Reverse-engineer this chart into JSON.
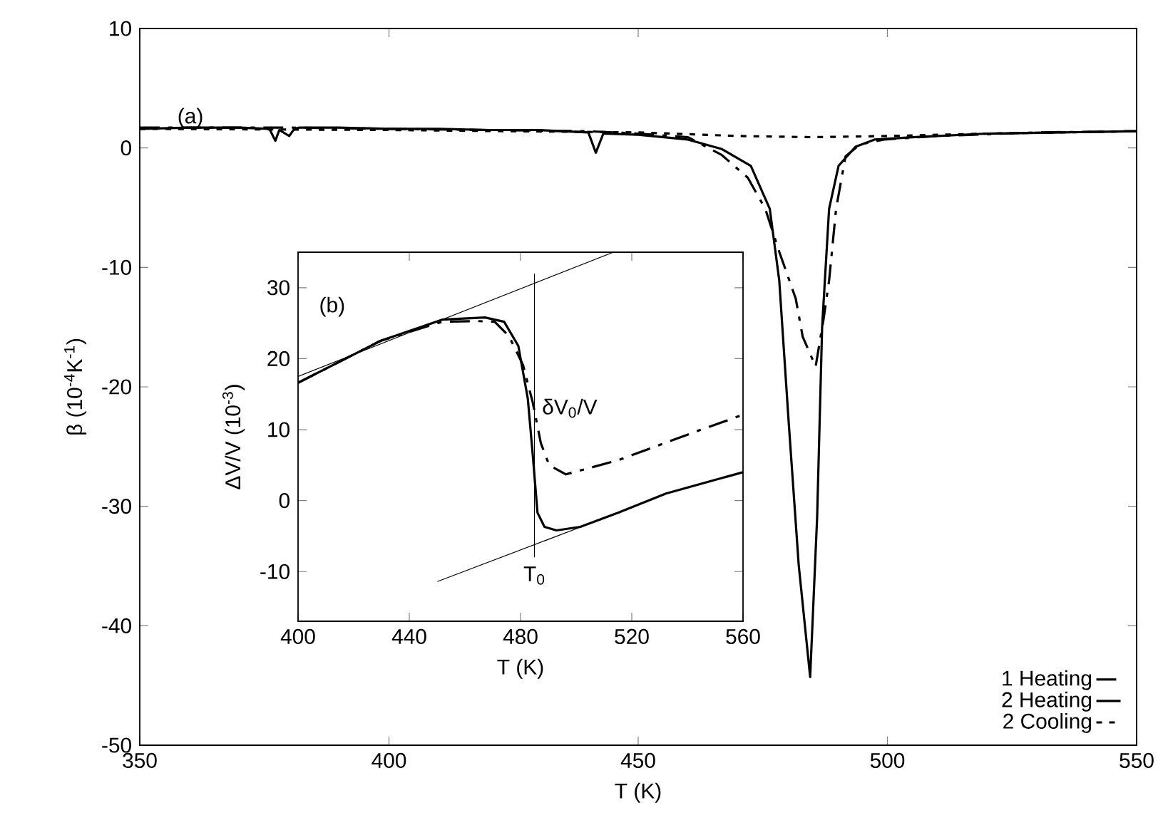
{
  "chart_data": [
    {
      "type": "line",
      "xlabel": "T (K)",
      "ylabel": "β (10$^{-4}$K$^{-1}$)",
      "xlim": [
        350,
        550
      ],
      "ylim": [
        -50,
        10
      ],
      "xticks": [
        350,
        400,
        450,
        500,
        550
      ],
      "yticks": [
        -50,
        -40,
        -30,
        -20,
        -10,
        0,
        10
      ],
      "legend": "bottom right",
      "grid": false,
      "marker": "none",
      "annotations": [
        "(a)"
      ],
      "series": [
        {
          "name": "1 Heating",
          "color": "#000000",
          "line_style": "dashdot",
          "x": [
            350,
            380,
            400,
            420,
            440,
            450,
            460,
            466.8,
            472,
            475.5,
            478.3,
            481.6,
            483,
            485.6,
            487.2,
            488.3,
            489.7,
            491.6,
            494.5,
            499.3,
            510,
            530,
            550
          ],
          "values": [
            1.7,
            1.7,
            1.6,
            1.5,
            1.4,
            1.2,
            0.9,
            -0.6,
            -2.5,
            -5.1,
            -8.7,
            -12.6,
            -15.8,
            -18.3,
            -14.3,
            -11.1,
            -5.1,
            -0.7,
            0.3,
            0.7,
            1.0,
            1.3,
            1.4
          ]
        },
        {
          "name": "2 Heating",
          "color": "#000000",
          "line_style": "solid",
          "x": [
            350,
            360,
            370,
            376,
            377.2,
            378,
            380,
            381,
            382,
            390,
            400,
            410,
            420,
            430,
            440,
            441.5,
            443,
            450,
            460,
            466.8,
            472.6,
            476.4,
            478.3,
            480.2,
            482.2,
            484.5,
            485.9,
            486.9,
            488.3,
            490.2,
            493.6,
            497.4,
            505,
            520,
            535,
            550
          ],
          "values": [
            1.6,
            1.7,
            1.7,
            1.6,
            0.6,
            1.5,
            1.0,
            1.6,
            1.7,
            1.7,
            1.6,
            1.6,
            1.5,
            1.5,
            1.3,
            -0.4,
            1.2,
            1.1,
            0.7,
            -0.1,
            -1.5,
            -5.1,
            -11.1,
            -23,
            -34.9,
            -44.3,
            -30.9,
            -15,
            -5.1,
            -1.5,
            0.1,
            0.7,
            0.9,
            1.2,
            1.3,
            1.4
          ]
        },
        {
          "name": "2 Cooling",
          "color": "#000000",
          "line_style": "dotted",
          "x": [
            350,
            400,
            450,
            470,
            485,
            500,
            520,
            550
          ],
          "values": [
            1.6,
            1.5,
            1.3,
            1.0,
            0.9,
            1.0,
            1.2,
            1.4
          ]
        }
      ]
    },
    {
      "type": "line",
      "xlabel": "T (K)",
      "ylabel": "ΔV/V (10$^{-3}$)",
      "xlim": [
        400,
        560
      ],
      "ylim": [
        -17,
        35
      ],
      "xticks": [
        400,
        440,
        480,
        520,
        560
      ],
      "yticks": [
        -10,
        0,
        10,
        20,
        30
      ],
      "grid": false,
      "marker": "none",
      "annotations": [
        "(b)",
        {
          "text": "δV$_{0}$/V",
          "x": 487,
          "y": 13
        },
        {
          "text": "T$_{0}$",
          "x": 485,
          "y": -9
        }
      ],
      "series": [
        {
          "color": "#000000",
          "line_style": "dashdot",
          "x": [
            400,
            429.6,
            451.8,
            464,
            470.7,
            475.8,
            480.9,
            484.4,
            487.3,
            490.3,
            496.3,
            515.2,
            540.8,
            560
          ],
          "values": [
            16.6,
            22.5,
            25.2,
            25.3,
            25.2,
            23.2,
            19.1,
            13.8,
            8.1,
            5.0,
            3.7,
            5.7,
            9.4,
            12.1
          ]
        },
        {
          "color": "#000000",
          "line_style": "solid",
          "x": [
            400,
            429.6,
            451.8,
            467.2,
            474.1,
            479.2,
            482.6,
            484.4,
            486.1,
            488.6,
            492.9,
            501.5,
            515.2,
            532.3,
            560
          ],
          "values": [
            16.6,
            22.5,
            25.5,
            25.8,
            25.2,
            21.8,
            14.4,
            6.4,
            -1.7,
            -3.7,
            -4.2,
            -3.7,
            -1.7,
            1.0,
            4.0
          ]
        },
        {
          "color": "#000000",
          "line_style": "solid",
          "x": [
            400,
            513.4
          ],
          "values": [
            17.5,
            35
          ]
        },
        {
          "color": "#000000",
          "line_style": "solid",
          "x": [
            450.1,
            503.2
          ],
          "values": [
            -11.4,
            -3.5
          ]
        },
        {
          "color": "#000000",
          "line_style": "solid",
          "x": [
            485,
            485
          ],
          "values": [
            32,
            -8
          ]
        }
      ]
    }
  ]
}
